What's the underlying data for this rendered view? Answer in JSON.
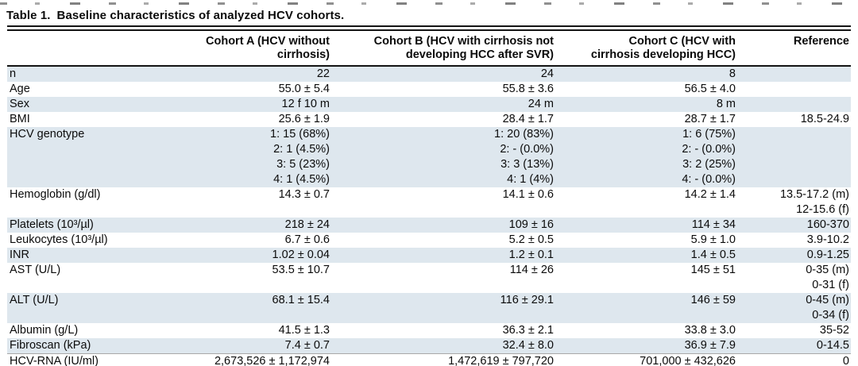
{
  "page": {
    "title_label": "Table 1.",
    "title_text": "Baseline characteristics of analyzed HCV cohorts."
  },
  "table": {
    "columns": [
      "",
      "Cohort A (HCV without cirrhosis)",
      "Cohort B (HCV with cirrhosis not\ndeveloping HCC after SVR)",
      "Cohort C (HCV with\ncirrhosis developing HCC)",
      "Reference"
    ],
    "rows": [
      {
        "label": "n",
        "a": "22",
        "b": "24",
        "c": "8",
        "ref": "",
        "shaded": true
      },
      {
        "label": "Age",
        "a": "55.0 ± 5.4",
        "b": "55.8 ± 3.6",
        "c": "56.5 ± 4.0",
        "ref": "",
        "shaded": false
      },
      {
        "label": "Sex",
        "a": "12 f 10 m",
        "b": "24 m",
        "c": "8 m",
        "ref": "",
        "shaded": true
      },
      {
        "label": "BMI",
        "a": "25.6 ± 1.9",
        "b": "28.4 ± 1.7",
        "c": "28.7 ± 1.7",
        "ref": "18.5-24.9",
        "shaded": false
      },
      {
        "label": "HCV genotype",
        "a": "1: 15 (68%)\n2: 1 (4.5%)\n3: 5 (23%)\n4: 1 (4.5%)",
        "b": "1: 20 (83%)\n2: - (0.0%)\n3: 3 (13%)\n4: 1 (4%)",
        "c": "1: 6 (75%)\n2: - (0.0%)\n3: 2 (25%)\n4: - (0.0%)",
        "ref": "",
        "shaded": true
      },
      {
        "label": "Hemoglobin (g/dl)",
        "a": "14.3 ± 0.7",
        "b": "14.1 ± 0.6",
        "c": "14.2 ± 1.4",
        "ref": "13.5-17.2 (m)\n12-15.6 (f)",
        "shaded": false
      },
      {
        "label": "Platelets (10³/µl)",
        "a": "218 ± 24",
        "b": "109 ± 16",
        "c": "114 ± 34",
        "ref": "160-370",
        "shaded": true
      },
      {
        "label": "Leukocytes (10³/µl)",
        "a": "6.7 ± 0.6",
        "b": "5.2 ± 0.5",
        "c": "5.9 ± 1.0",
        "ref": "3.9-10.2",
        "shaded": false
      },
      {
        "label": "INR",
        "a": "1.02 ± 0.04",
        "b": "1.2 ± 0.1",
        "c": "1.4 ± 0.5",
        "ref": "0.9-1.25",
        "shaded": true
      },
      {
        "label": "AST (U/L)",
        "a": "53.5 ± 10.7",
        "b": "114 ± 26",
        "c": "145 ± 51",
        "ref": "0-35 (m)\n0-31 (f)",
        "shaded": false
      },
      {
        "label": "ALT (U/L)",
        "a": "68.1 ± 15.4",
        "b": "116 ± 29.1",
        "c": "146 ± 59",
        "ref": "0-45 (m)\n0-34 (f)",
        "shaded": true
      },
      {
        "label": "Albumin (g/L)",
        "a": "41.5 ± 1.3",
        "b": "36.3 ± 2.1",
        "c": "33.8 ± 3.0",
        "ref": "35-52",
        "shaded": false
      },
      {
        "label": "Fibroscan (kPa)",
        "a": "7.4 ± 0.7",
        "b": "32.4 ± 8.0",
        "c": "36.9 ± 7.9",
        "ref": "0-14.5",
        "shaded": true
      },
      {
        "label": "HCV-RNA (IU/ml)",
        "a": "2,673,526 ± 1,172,974",
        "b": "1,472,619 ± 797,720",
        "c": "701,000 ± 432,626",
        "ref": "0",
        "shaded": false
      }
    ]
  },
  "colors": {
    "row_shade": "#dee7ee",
    "rule": "#141414"
  }
}
